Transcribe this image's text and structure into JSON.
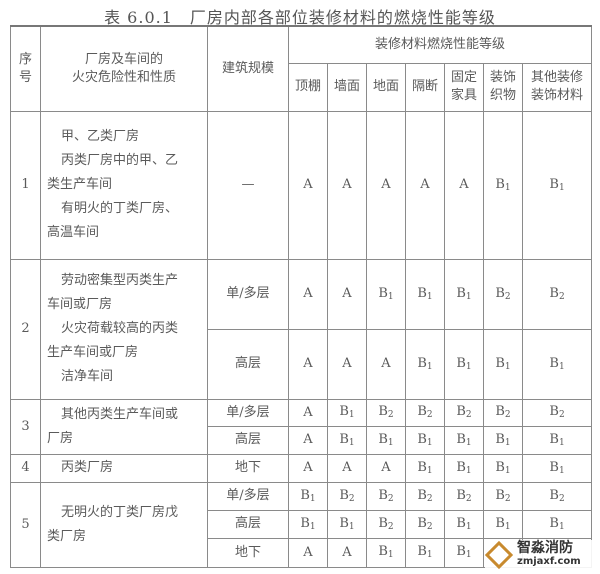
{
  "title": "表 6.0.1　厂房内部各部位装修材料的燃烧性能等级",
  "header": {
    "seq": [
      "序",
      "号"
    ],
    "nature": [
      "厂房及车间的",
      "火灾危险性和性质"
    ],
    "scale": "建筑规模",
    "group": "装修材料燃烧性能等级",
    "columns": [
      [
        "顶棚"
      ],
      [
        "墙面"
      ],
      [
        "地面"
      ],
      [
        "隔断"
      ],
      [
        "固定",
        "家具"
      ],
      [
        "装饰",
        "织物"
      ],
      [
        "其他装修",
        "装饰材料"
      ]
    ]
  },
  "rows": [
    {
      "no": "1",
      "desc": [
        "甲、乙类厂房",
        "丙类厂房中的甲、乙",
        "类生产车间",
        "有明火的丁类厂房、",
        "高温车间"
      ],
      "sub": [
        {
          "scale": "—",
          "grades": [
            "A",
            "A",
            "A",
            "A",
            "A",
            "B1",
            "B1"
          ]
        }
      ]
    },
    {
      "no": "2",
      "desc": [
        "劳动密集型丙类生产",
        "车间或厂房",
        "火灾荷载较高的丙类",
        "生产车间或厂房",
        "洁净车间"
      ],
      "sub": [
        {
          "scale": "单/多层",
          "grades": [
            "A",
            "A",
            "B1",
            "B1",
            "B1",
            "B2",
            "B2"
          ]
        },
        {
          "scale": "高层",
          "grades": [
            "A",
            "A",
            "A",
            "B1",
            "B1",
            "B1",
            "B1"
          ]
        }
      ]
    },
    {
      "no": "3",
      "desc": [
        "其他丙类生产车间或",
        "厂房"
      ],
      "sub": [
        {
          "scale": "单/多层",
          "grades": [
            "A",
            "B1",
            "B2",
            "B2",
            "B2",
            "B2",
            "B2"
          ]
        },
        {
          "scale": "高层",
          "grades": [
            "A",
            "B1",
            "B1",
            "B1",
            "B1",
            "B1",
            "B1"
          ]
        }
      ]
    },
    {
      "no": "4",
      "desc": [
        "丙类厂房"
      ],
      "sub": [
        {
          "scale": "地下",
          "grades": [
            "A",
            "A",
            "A",
            "B1",
            "B1",
            "B1",
            "B1"
          ]
        }
      ]
    },
    {
      "no": "5",
      "desc": [
        "无明火的丁类厂房戊",
        "类厂房"
      ],
      "sub": [
        {
          "scale": "单/多层",
          "grades": [
            "B1",
            "B2",
            "B2",
            "B2",
            "B2",
            "B2",
            "B2"
          ]
        },
        {
          "scale": "高层",
          "grades": [
            "B1",
            "B1",
            "B2",
            "B2",
            "B1",
            "B1",
            "B1"
          ]
        },
        {
          "scale": "地下",
          "grades": [
            "A",
            "A",
            "B1",
            "B1",
            "B1",
            "",
            ""
          ]
        }
      ]
    }
  ],
  "watermark": {
    "cn": "智淼消防",
    "en": "zmjaxf.com"
  }
}
